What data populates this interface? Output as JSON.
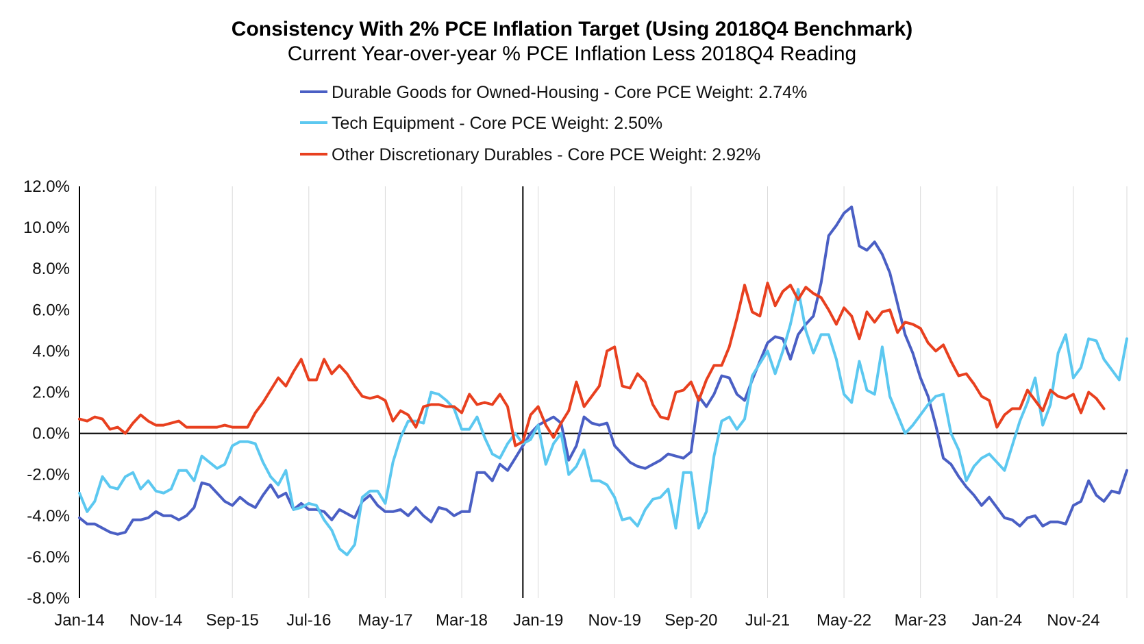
{
  "chart_data": {
    "type": "line",
    "title": "Consistency With 2% PCE Inflation Target (Using 2018Q4 Benchmark)",
    "subtitle": "Current Year-over-year % PCE Inflation Less 2018Q4 Reading",
    "ylim": [
      -8,
      12
    ],
    "yticks": [
      -8,
      -6,
      -4,
      -2,
      0,
      2,
      4,
      6,
      8,
      10,
      12
    ],
    "ytick_labels": [
      "-8.0%",
      "-6.0%",
      "-4.0%",
      "-2.0%",
      "0.0%",
      "2.0%",
      "4.0%",
      "6.0%",
      "8.0%",
      "10.0%",
      "12.0%"
    ],
    "x_start": "Jan-14",
    "x_end": "Jun-25",
    "xticks": [
      "Jan-14",
      "Nov-14",
      "Sep-15",
      "Jul-16",
      "May-17",
      "Mar-18",
      "Jan-19",
      "Nov-19",
      "Sep-20",
      "Jul-21",
      "May-22",
      "Mar-23",
      "Jan-24",
      "Nov-24"
    ],
    "benchmark_line": "Nov-18",
    "grid": "vertical",
    "legend_position": "top",
    "series": [
      {
        "name": "Durable Goods for Owned-Housing - Core PCE Weight: 2.74%",
        "color": "#4a5fc4",
        "values": [
          -4.1,
          -4.4,
          -4.4,
          -4.6,
          -4.8,
          -4.9,
          -4.8,
          -4.2,
          -4.2,
          -4.1,
          -3.8,
          -4.0,
          -4.0,
          -4.2,
          -4.0,
          -3.6,
          -2.4,
          -2.5,
          -2.9,
          -3.3,
          -3.5,
          -3.1,
          -3.4,
          -3.6,
          -3.0,
          -2.5,
          -3.1,
          -2.9,
          -3.7,
          -3.4,
          -3.7,
          -3.7,
          -3.8,
          -4.2,
          -3.7,
          -3.9,
          -4.1,
          -3.3,
          -3.0,
          -3.5,
          -3.8,
          -3.8,
          -3.7,
          -4.0,
          -3.6,
          -4.0,
          -4.3,
          -3.6,
          -3.7,
          -4.0,
          -3.8,
          -3.8,
          -1.9,
          -1.9,
          -2.3,
          -1.5,
          -1.8,
          -1.2,
          -0.6,
          0.0,
          0.4,
          0.6,
          0.8,
          0.5,
          -1.3,
          -0.6,
          0.8,
          0.5,
          0.4,
          0.5,
          -0.6,
          -1.0,
          -1.4,
          -1.6,
          -1.7,
          -1.5,
          -1.3,
          -1.0,
          -1.1,
          -1.2,
          -0.9,
          1.8,
          1.3,
          1.9,
          2.8,
          2.7,
          1.9,
          1.6,
          2.6,
          3.5,
          4.4,
          4.7,
          4.6,
          3.6,
          4.8,
          5.3,
          5.7,
          7.3,
          9.6,
          10.1,
          10.7,
          11.0,
          9.1,
          8.9,
          9.3,
          8.7,
          7.8,
          6.3,
          4.8,
          3.9,
          2.7,
          1.8,
          0.4,
          -1.2,
          -1.5,
          -2.1,
          -2.6,
          -3.0,
          -3.5,
          -3.1,
          -3.6,
          -4.1,
          -4.2,
          -4.5,
          -4.1,
          -4.0,
          -4.5,
          -4.3,
          -4.3,
          -4.4,
          -3.5,
          -3.3,
          -2.3,
          -3.0,
          -3.3,
          -2.8,
          -2.9,
          -1.8
        ]
      },
      {
        "name": "Tech Equipment - Core PCE Weight: 2.50%",
        "color": "#5cc8f0",
        "values": [
          -2.9,
          -3.8,
          -3.3,
          -2.1,
          -2.6,
          -2.7,
          -2.1,
          -1.9,
          -2.7,
          -2.3,
          -2.8,
          -2.9,
          -2.7,
          -1.8,
          -1.8,
          -2.3,
          -1.1,
          -1.4,
          -1.7,
          -1.5,
          -0.6,
          -0.4,
          -0.4,
          -0.5,
          -1.4,
          -2.1,
          -2.5,
          -1.8,
          -3.7,
          -3.6,
          -3.4,
          -3.5,
          -4.2,
          -4.7,
          -5.6,
          -5.9,
          -5.4,
          -3.1,
          -2.8,
          -2.8,
          -3.4,
          -1.4,
          -0.2,
          0.6,
          0.6,
          0.5,
          2.0,
          1.9,
          1.6,
          1.2,
          0.2,
          0.2,
          0.8,
          -0.2,
          -1.0,
          -1.2,
          -0.5,
          0.0,
          -0.5,
          -0.3,
          0.4,
          -1.5,
          -0.5,
          0.0,
          -2.0,
          -1.6,
          -0.8,
          -2.3,
          -2.3,
          -2.5,
          -3.1,
          -4.2,
          -4.1,
          -4.5,
          -3.7,
          -3.2,
          -3.1,
          -2.7,
          -4.6,
          -1.9,
          -1.9,
          -4.6,
          -3.8,
          -1.1,
          0.6,
          0.8,
          0.2,
          0.7,
          2.8,
          3.4,
          4.0,
          2.9,
          4.0,
          5.3,
          7.0,
          5.0,
          3.9,
          4.8,
          4.8,
          3.6,
          1.9,
          1.5,
          3.5,
          2.1,
          1.9,
          4.2,
          1.8,
          0.9,
          0.0,
          0.4,
          0.9,
          1.4,
          1.8,
          1.9,
          0.0,
          -0.8,
          -2.3,
          -1.6,
          -1.2,
          -1.0,
          -1.4,
          -1.8,
          -0.6,
          0.6,
          1.5,
          2.7,
          0.4,
          1.4,
          3.9,
          4.8,
          2.7,
          3.2,
          4.6,
          4.5,
          3.6,
          3.1,
          2.6,
          4.6
        ]
      },
      {
        "name": "Other Discretionary Durables - Core PCE Weight: 2.92%",
        "color": "#e8401f",
        "values": [
          0.7,
          0.6,
          0.8,
          0.7,
          0.2,
          0.3,
          0.0,
          0.5,
          0.9,
          0.6,
          0.4,
          0.4,
          0.5,
          0.6,
          0.3,
          0.3,
          0.3,
          0.3,
          0.3,
          0.4,
          0.3,
          0.3,
          0.3,
          1.0,
          1.5,
          2.1,
          2.7,
          2.3,
          3.0,
          3.6,
          2.6,
          2.6,
          3.6,
          2.9,
          3.3,
          2.9,
          2.3,
          1.8,
          1.7,
          1.8,
          1.6,
          0.6,
          1.1,
          0.9,
          0.3,
          1.3,
          1.4,
          1.4,
          1.3,
          1.3,
          1.0,
          1.9,
          1.4,
          1.5,
          1.4,
          1.9,
          1.3,
          -0.6,
          -0.4,
          0.9,
          1.3,
          0.4,
          -0.2,
          0.5,
          1.1,
          2.5,
          1.3,
          1.8,
          2.3,
          4.0,
          4.2,
          2.3,
          2.2,
          2.9,
          2.5,
          1.4,
          0.8,
          0.7,
          2.0,
          2.1,
          2.5,
          1.6,
          2.6,
          3.3,
          3.3,
          4.2,
          5.6,
          7.2,
          5.9,
          5.7,
          7.3,
          6.2,
          6.9,
          7.2,
          6.5,
          7.1,
          6.8,
          6.6,
          6.0,
          5.3,
          6.1,
          5.7,
          4.6,
          5.9,
          5.4,
          5.9,
          6.0,
          4.9,
          5.4,
          5.3,
          5.1,
          4.4,
          4.0,
          4.3,
          3.5,
          2.8,
          2.9,
          2.4,
          1.8,
          1.6,
          0.3,
          0.9,
          1.2,
          1.2,
          2.1,
          1.6,
          1.1,
          2.1,
          1.8,
          1.7,
          1.9,
          1.0,
          2.0,
          1.7,
          1.2
        ]
      }
    ]
  }
}
